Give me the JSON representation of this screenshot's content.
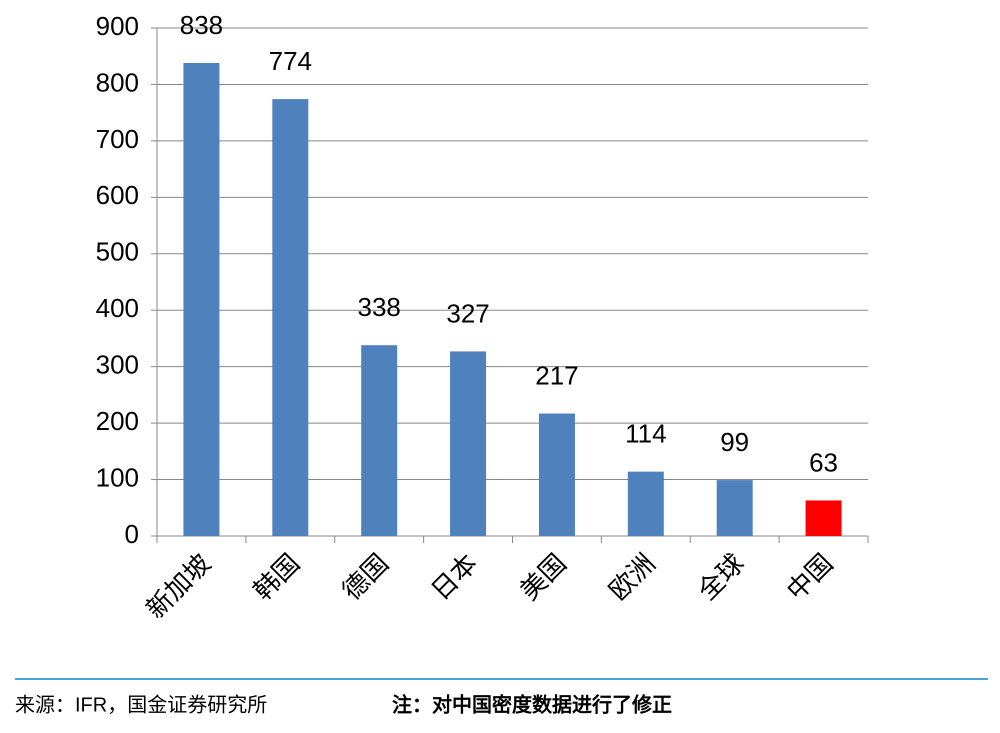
{
  "chart_data": {
    "type": "bar",
    "categories": [
      "新加坡",
      "韩国",
      "德国",
      "日本",
      "美国",
      "欧洲",
      "全球",
      "中国"
    ],
    "values": [
      838,
      774,
      338,
      327,
      217,
      114,
      99,
      63
    ],
    "colors": [
      "#4f81bd",
      "#4f81bd",
      "#4f81bd",
      "#4f81bd",
      "#4f81bd",
      "#4f81bd",
      "#4f81bd",
      "#ff0000"
    ],
    "ylim": [
      0,
      900
    ],
    "yticks": [
      0,
      100,
      200,
      300,
      400,
      500,
      600,
      700,
      800,
      900
    ],
    "grid": true,
    "source": "来源：IFR，国金证券研究所",
    "note": "注：对中国密度数据进行了修正"
  }
}
